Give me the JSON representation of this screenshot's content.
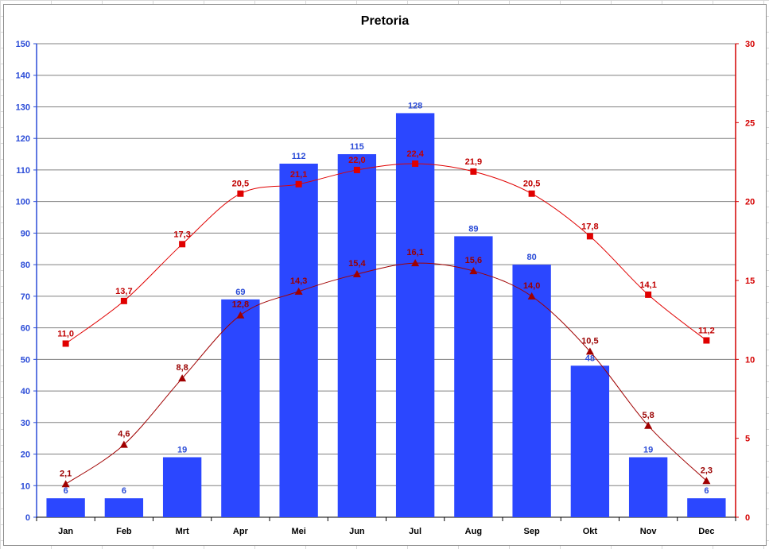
{
  "chart_data": {
    "title": "Pretoria",
    "type": "bar",
    "categories": [
      "Jan",
      "Feb",
      "Mrt",
      "Apr",
      "Mei",
      "Jun",
      "Jul",
      "Aug",
      "Sep",
      "Okt",
      "Nov",
      "Dec"
    ],
    "y_left": {
      "min": 0,
      "max": 150,
      "step": 10,
      "color": "#2a4bd7"
    },
    "y_right": {
      "min": 0,
      "max": 30,
      "step": 5,
      "color": "#d40000"
    },
    "grid": true,
    "series": [
      {
        "type": "bar",
        "axis": "left",
        "color": "#2b47ff",
        "values": [
          6,
          6,
          19,
          69,
          112,
          115,
          128,
          89,
          80,
          48,
          19,
          6
        ],
        "labels": [
          "6",
          "6",
          "19",
          "69",
          "112",
          "115",
          "128",
          "89",
          "80",
          "48",
          "19",
          "6"
        ]
      },
      {
        "type": "line",
        "axis": "right",
        "color": "#e00000",
        "marker": "square",
        "values": [
          11.0,
          13.7,
          17.3,
          20.5,
          21.1,
          22.0,
          22.4,
          21.9,
          20.5,
          17.8,
          14.1,
          11.2
        ],
        "labels": [
          "11,0",
          "13,7",
          "17,3",
          "20,5",
          "21,1",
          "22,0",
          "22,4",
          "21,9",
          "20,5",
          "17,8",
          "14,1",
          "11,2"
        ]
      },
      {
        "type": "line",
        "axis": "right",
        "color": "#a00000",
        "marker": "triangle",
        "values": [
          2.1,
          4.6,
          8.8,
          12.8,
          14.3,
          15.4,
          16.1,
          15.6,
          14.0,
          10.5,
          5.8,
          2.3
        ],
        "labels": [
          "2,1",
          "4,6",
          "8,8",
          "12,8",
          "14,3",
          "15,4",
          "16,1",
          "15,6",
          "14,0",
          "10,5",
          "5,8",
          "2,3"
        ]
      }
    ]
  }
}
